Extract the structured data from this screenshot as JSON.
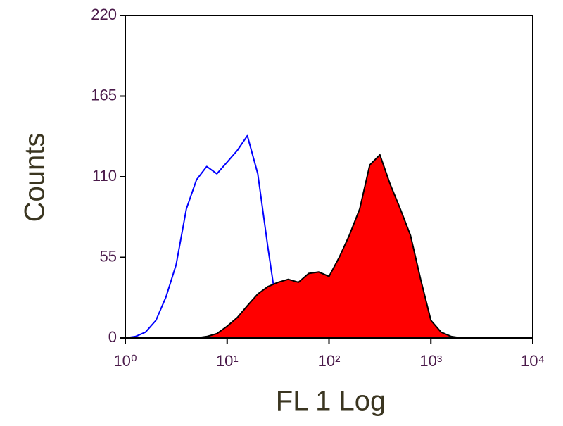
{
  "chart_data": {
    "type": "histogram",
    "x_label": "FL 1 Log",
    "y_label": "Counts",
    "xscale": "log",
    "xlim": [
      1,
      10000
    ],
    "xticks": [
      {
        "value": 1,
        "label": "10⁰"
      },
      {
        "value": 10,
        "label": "10¹"
      },
      {
        "value": 100,
        "label": "10²"
      },
      {
        "value": 1000,
        "label": "10³"
      },
      {
        "value": 10000,
        "label": "10⁴"
      }
    ],
    "ylim": [
      0,
      220
    ],
    "yticks": [
      0,
      55,
      110,
      165,
      220
    ],
    "x": [
      1,
      1.26,
      1.58,
      2,
      2.51,
      3.16,
      3.98,
      5.01,
      6.31,
      7.94,
      10,
      12.6,
      15.8,
      20,
      25.1,
      31.6,
      39.8,
      50.1,
      63.1,
      79.4,
      100,
      126,
      158,
      200,
      251,
      316,
      398,
      501,
      631,
      794,
      1000,
      1259,
      1585,
      1995,
      2512,
      3162
    ],
    "series": [
      {
        "color": "#0000ff",
        "filled": false,
        "values": [
          0,
          1,
          4,
          12,
          28,
          50,
          88,
          108,
          117,
          112,
          120,
          128,
          138,
          112,
          62,
          15,
          5,
          3,
          2,
          2,
          2,
          1,
          0,
          0,
          0,
          0,
          0,
          0,
          0,
          0,
          0,
          0,
          0,
          0,
          0,
          0
        ]
      },
      {
        "color": "#ff0000",
        "edge_color": "#000000",
        "filled": true,
        "values": [
          0,
          0,
          0,
          0,
          0,
          0,
          0,
          0,
          1,
          3,
          8,
          14,
          22,
          30,
          35,
          38,
          40,
          38,
          44,
          45,
          42,
          55,
          70,
          88,
          118,
          125,
          105,
          88,
          70,
          40,
          12,
          4,
          1,
          0,
          0,
          0
        ]
      }
    ]
  }
}
